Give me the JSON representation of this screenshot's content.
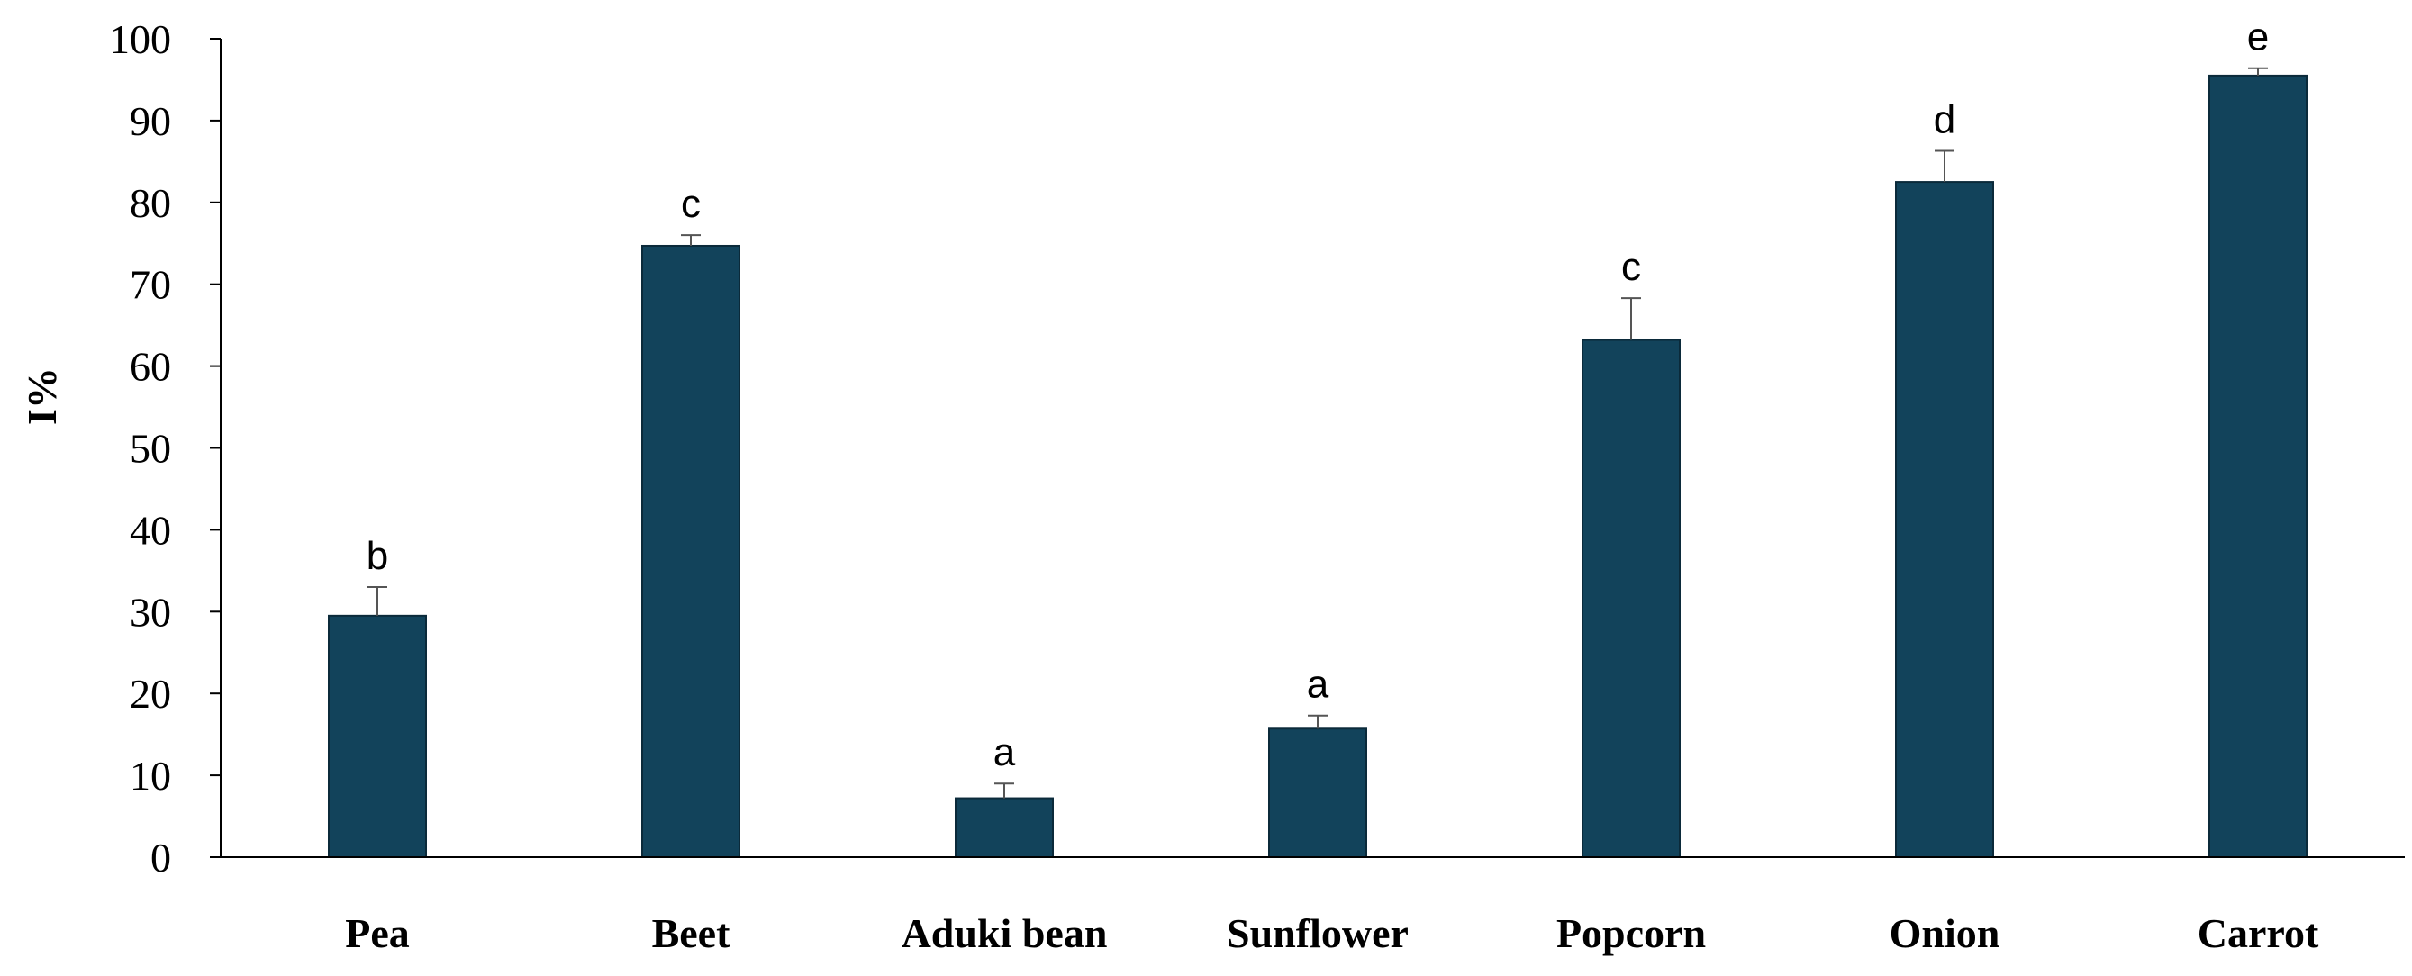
{
  "chart_data": {
    "type": "bar",
    "title": "",
    "xlabel": "",
    "ylabel": "I%",
    "ylim": [
      0,
      100
    ],
    "yticks": [
      0,
      10,
      20,
      30,
      40,
      50,
      60,
      70,
      80,
      90,
      100
    ],
    "grid": false,
    "bar_color": "#12435B",
    "categories": [
      "Pea",
      "Beet",
      "Aduki bean",
      "Sunflower",
      "Popcorn",
      "Onion",
      "Carrot"
    ],
    "values": [
      29.5,
      74.7,
      7.2,
      15.7,
      63.2,
      82.5,
      95.5
    ],
    "error_plus": [
      3.5,
      1.3,
      1.8,
      1.6,
      5.1,
      3.8,
      0.9
    ],
    "significance": [
      "b",
      "c",
      "a",
      "a",
      "c",
      "d",
      "e"
    ]
  }
}
